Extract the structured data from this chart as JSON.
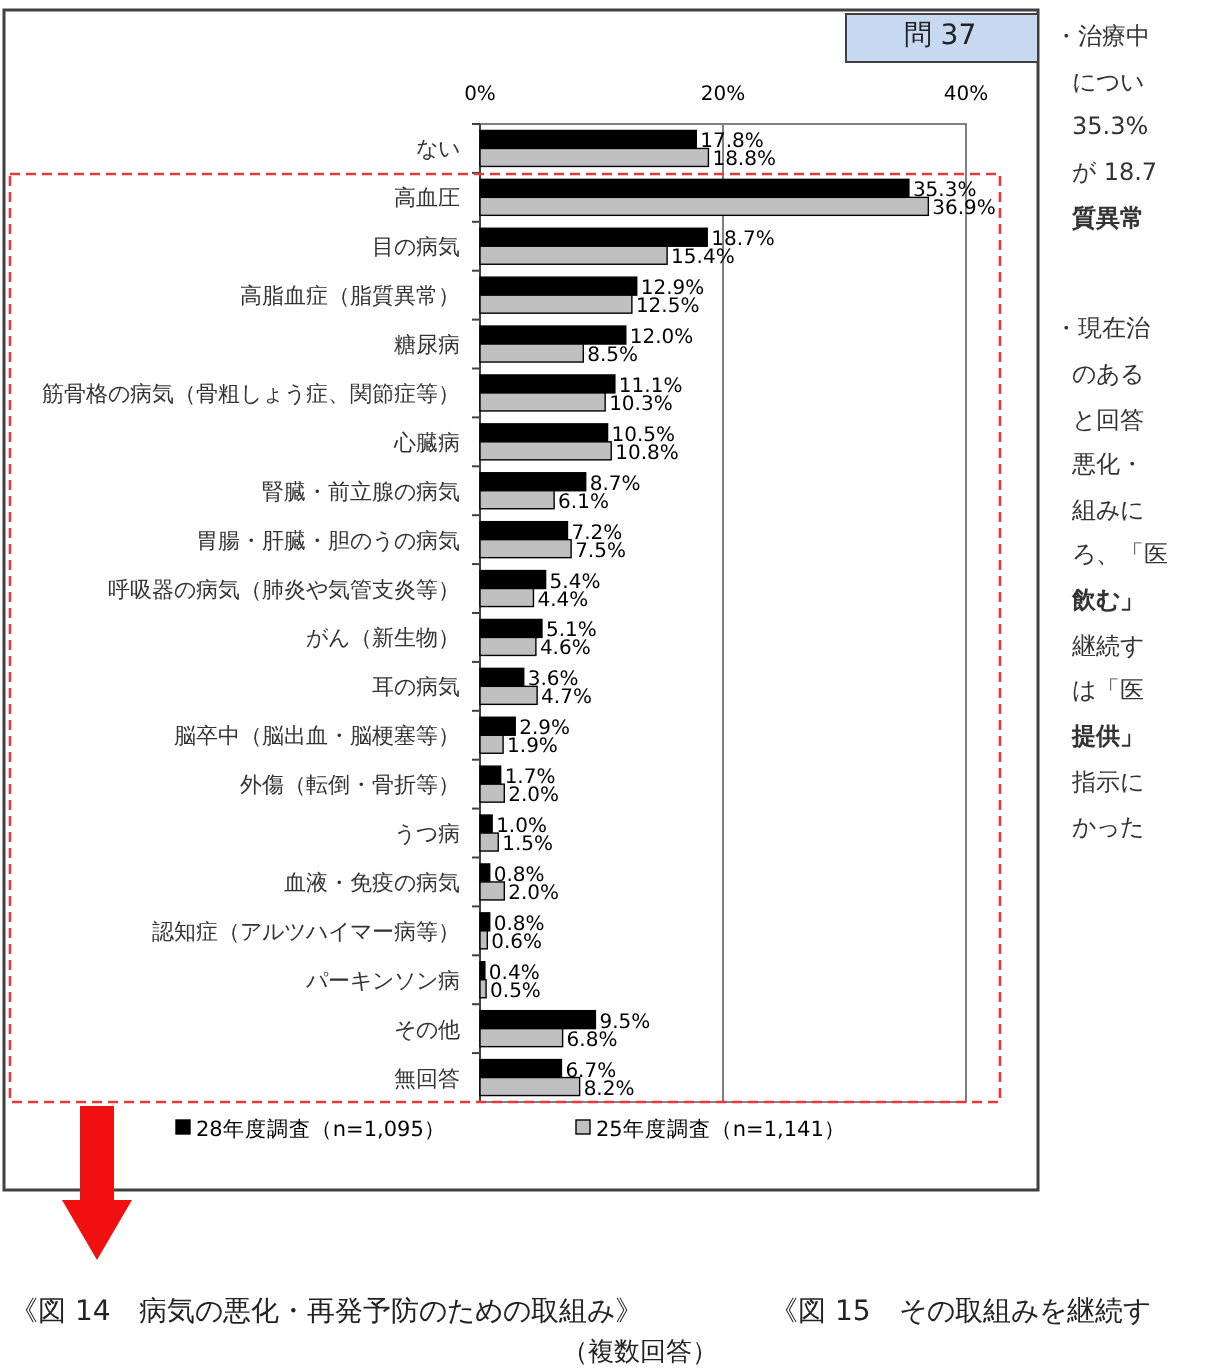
{
  "chart_data": {
    "type": "bar",
    "orientation": "horizontal",
    "categories": [
      "ない",
      "高血圧",
      "目の病気",
      "高脂血症（脂質異常）",
      "糖尿病",
      "筋骨格の病気（骨粗しょう症、関節症等）",
      "心臓病",
      "腎臓・前立腺の病気",
      "胃腸・肝臓・胆のうの病気",
      "呼吸器の病気（肺炎や気管支炎等）",
      "がん（新生物）",
      "耳の病気",
      "脳卒中（脳出血・脳梗塞等）",
      "外傷（転倒・骨折等）",
      "うつ病",
      "血液・免疫の病気",
      "認知症（アルツハイマー病等）",
      "パーキンソン病",
      "その他",
      "無回答"
    ],
    "series": [
      {
        "name": "28年度調査（n=1,095）",
        "color": "#000000",
        "values": [
          17.8,
          35.3,
          18.7,
          12.9,
          12.0,
          11.1,
          10.5,
          8.7,
          7.2,
          5.4,
          5.1,
          3.6,
          2.9,
          1.7,
          1.0,
          0.8,
          0.8,
          0.4,
          9.5,
          6.7
        ],
        "value_labels": [
          "17.8%",
          "35.3%",
          "18.7%",
          "12.9%",
          "12.0%",
          "11.1%",
          "10.5%",
          "8.7%",
          "7.2%",
          "5.4%",
          "5.1%",
          "3.6%",
          "2.9%",
          "1.7%",
          "1.0%",
          "0.8%",
          "0.8%",
          "0.4%",
          "9.5%",
          "6.7%"
        ]
      },
      {
        "name": "25年度調査（n=1,141）",
        "color": "#c0c0c0",
        "values": [
          18.8,
          36.9,
          15.4,
          12.5,
          8.5,
          10.3,
          10.8,
          6.1,
          7.5,
          4.4,
          4.6,
          4.7,
          1.9,
          2.0,
          1.5,
          2.0,
          0.6,
          0.5,
          6.8,
          8.2
        ],
        "value_labels": [
          "18.8%",
          "36.9%",
          "15.4%",
          "12.5%",
          "8.5%",
          "10.3%",
          "10.8%",
          "6.1%",
          "7.5%",
          "4.4%",
          "4.6%",
          "4.7%",
          "1.9%",
          "2.0%",
          "1.5%",
          "2.0%",
          "0.6%",
          "0.5%",
          "6.8%",
          "8.2%"
        ]
      }
    ],
    "xlim": [
      0,
      40
    ],
    "xticks": [
      {
        "value": 0,
        "label": "0%"
      },
      {
        "value": 20,
        "label": "20%"
      },
      {
        "value": 40,
        "label": "40%"
      }
    ],
    "grid": "x",
    "legend": "bottom",
    "annotations": [
      "問 37",
      "《図 14　病気の悪化・再発予防のための取組み》",
      "《図 15　その取組みを継続す",
      "（複数回答）",
      "・治療中",
      "につい",
      "35.3%",
      "が 18.7",
      "質異常",
      "・現在治",
      "のある",
      "と回答",
      "悪化・",
      "組みに",
      "ろ、「医",
      "飲む」",
      "継続す",
      "は「医",
      "提供」",
      "指示に",
      "かった"
    ]
  }
}
